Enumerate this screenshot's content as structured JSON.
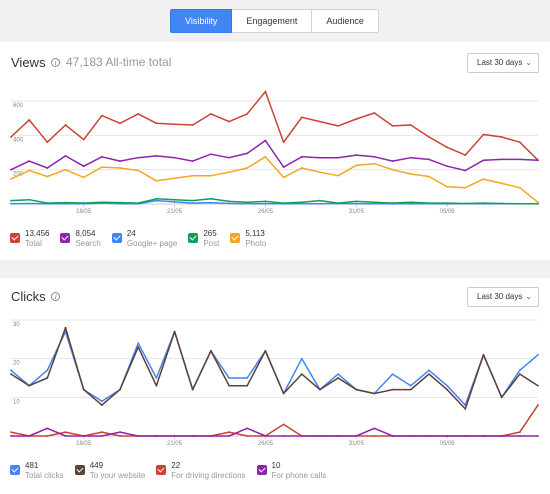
{
  "tabs": [
    {
      "label": "Visibility",
      "active": true
    },
    {
      "label": "Engagement",
      "active": false
    },
    {
      "label": "Audience",
      "active": false
    }
  ],
  "views": {
    "title": "Views",
    "total": "47,183 All-time total",
    "range_label": "Last 30 days",
    "legend": [
      {
        "value": "13,456",
        "label": "Total",
        "color": "#cb4335"
      },
      {
        "value": "8,054",
        "label": "Search",
        "color": "#8e24aa"
      },
      {
        "value": "24",
        "label": "Google+ page",
        "color": "#4285f4"
      },
      {
        "value": "265",
        "label": "Post",
        "color": "#0f9d58"
      },
      {
        "value": "5,113",
        "label": "Photo",
        "color": "#f4a623"
      }
    ]
  },
  "clicks": {
    "title": "Clicks",
    "range_label": "Last 30 days",
    "legend": [
      {
        "value": "481",
        "label": "Total clicks",
        "color": "#4285f4"
      },
      {
        "value": "449",
        "label": "To your website",
        "color": "#5d4037"
      },
      {
        "value": "22",
        "label": "For driving directions",
        "color": "#cb4335"
      },
      {
        "value": "10",
        "label": "For phone calls",
        "color": "#8e24aa"
      }
    ]
  },
  "chart_data": [
    {
      "type": "line",
      "title": "Views",
      "x_ticks": [
        "18/05",
        "21/05",
        "26/05",
        "31/05",
        "05/06"
      ],
      "x_tick_index": [
        4,
        9,
        14,
        19,
        24
      ],
      "ylim": [
        0,
        600
      ],
      "y_ticks": [
        200,
        400,
        600
      ],
      "y_tick_labels": [
        "200",
        "400",
        "600"
      ],
      "grid": true,
      "series": [
        {
          "name": "Total",
          "color": "#cb4335",
          "values": [
            390,
            490,
            360,
            460,
            375,
            515,
            470,
            525,
            470,
            465,
            460,
            525,
            480,
            525,
            655,
            360,
            505,
            480,
            455,
            495,
            530,
            455,
            460,
            390,
            330,
            285,
            405,
            390,
            360,
            255
          ]
        },
        {
          "name": "Search",
          "color": "#8e24aa",
          "values": [
            200,
            250,
            210,
            280,
            220,
            275,
            250,
            270,
            280,
            270,
            250,
            290,
            270,
            295,
            370,
            215,
            275,
            270,
            270,
            285,
            275,
            250,
            270,
            260,
            220,
            195,
            255,
            260,
            260,
            255
          ]
        },
        {
          "name": "Google+ page",
          "color": "#4285f4",
          "values": [
            2,
            3,
            1,
            2,
            1,
            5,
            2,
            1,
            20,
            12,
            5,
            8,
            3,
            2,
            2,
            1,
            2,
            1,
            3,
            2,
            1,
            1,
            1,
            2,
            1,
            1,
            2,
            1,
            1,
            1
          ]
        },
        {
          "name": "Post",
          "color": "#0f9d58",
          "values": [
            20,
            25,
            5,
            8,
            5,
            10,
            8,
            5,
            30,
            25,
            20,
            30,
            15,
            10,
            15,
            5,
            10,
            20,
            5,
            15,
            10,
            5,
            10,
            5,
            5,
            3,
            5,
            3,
            2,
            2
          ]
        },
        {
          "name": "Photo",
          "color": "#f4a623",
          "values": [
            145,
            195,
            160,
            200,
            155,
            215,
            210,
            195,
            135,
            150,
            165,
            165,
            185,
            210,
            275,
            155,
            210,
            185,
            165,
            225,
            235,
            200,
            175,
            160,
            100,
            95,
            145,
            120,
            95,
            10
          ]
        }
      ]
    },
    {
      "type": "line",
      "title": "Clicks",
      "x_ticks": [
        "18/05",
        "21/05",
        "26/05",
        "31/05",
        "05/06"
      ],
      "x_tick_index": [
        4,
        9,
        14,
        19,
        24
      ],
      "ylim": [
        0,
        30
      ],
      "y_ticks": [
        10,
        20,
        30
      ],
      "y_tick_labels": [
        "10",
        "20",
        "30"
      ],
      "grid": true,
      "series": [
        {
          "name": "Total clicks",
          "color": "#4285f4",
          "values": [
            17,
            13,
            17,
            27,
            12,
            9,
            12,
            24,
            15,
            27,
            12,
            22,
            15,
            15,
            22,
            11,
            20,
            12,
            16,
            12,
            11,
            16,
            13,
            17,
            13,
            8,
            21,
            10,
            17,
            21
          ]
        },
        {
          "name": "To your website",
          "color": "#5d4037",
          "values": [
            16,
            13,
            15,
            28,
            12,
            8,
            12,
            23,
            13,
            27,
            12,
            22,
            13,
            13,
            22,
            11,
            16,
            12,
            15,
            12,
            11,
            12,
            12,
            16,
            12,
            7,
            21,
            10,
            16,
            13
          ]
        },
        {
          "name": "For driving directions",
          "color": "#cb4335",
          "values": [
            1,
            0,
            0,
            1,
            0,
            1,
            0,
            0,
            0,
            0,
            0,
            0,
            1,
            0,
            0,
            3,
            0,
            0,
            0,
            0,
            0,
            0,
            0,
            0,
            0,
            0,
            0,
            0,
            1,
            8
          ]
        },
        {
          "name": "For phone calls",
          "color": "#8e24aa",
          "values": [
            0,
            0,
            2,
            0,
            0,
            0,
            1,
            0,
            0,
            0,
            0,
            0,
            0,
            2,
            0,
            0,
            0,
            0,
            0,
            0,
            2,
            0,
            0,
            0,
            0,
            0,
            0,
            0,
            0,
            0
          ]
        }
      ]
    }
  ]
}
